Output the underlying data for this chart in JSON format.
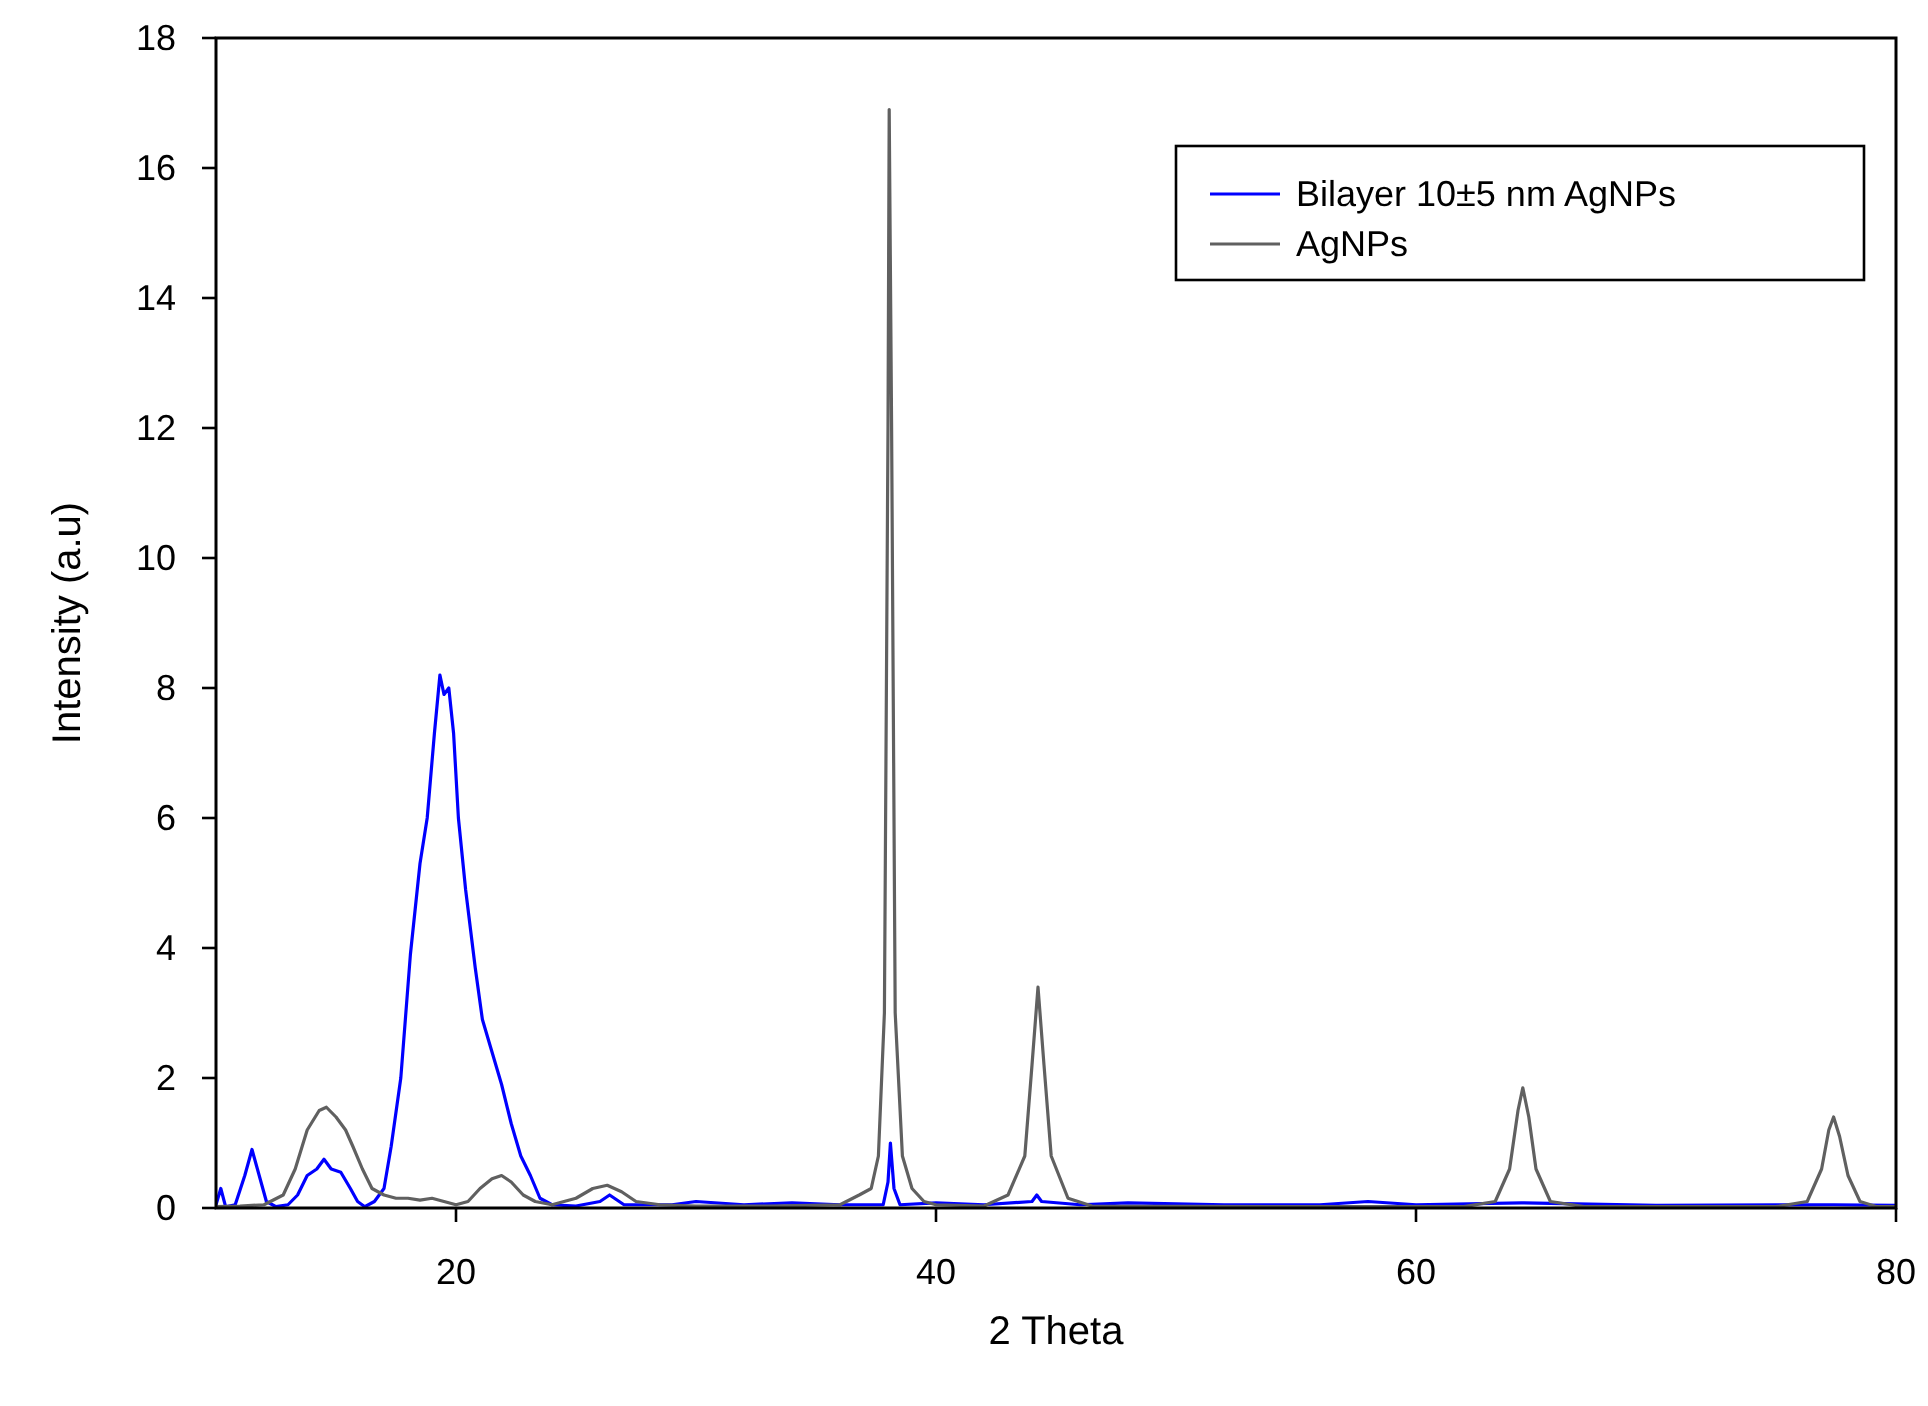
{
  "chart_data": {
    "type": "line",
    "xlabel": "2 Theta",
    "ylabel": "Intensity (a.u)",
    "xlim": [
      10,
      80
    ],
    "xticks": [
      20,
      40,
      60,
      80
    ],
    "ylim": [
      0,
      18
    ],
    "yticks": [
      0,
      2,
      4,
      6,
      8,
      10,
      12,
      14,
      16,
      18
    ],
    "grid": false,
    "legend": "top right",
    "marker": "none",
    "line_style": "solid",
    "series": [
      {
        "name": "Bilayer 10±5 nm AgNPs",
        "color": "#0000ff",
        "x": [
          10,
          10.2,
          10.4,
          10.8,
          11.2,
          11.5,
          11.8,
          12.1,
          12.5,
          13,
          13.4,
          13.8,
          14.2,
          14.5,
          14.8,
          15.2,
          15.6,
          15.9,
          16.2,
          16.6,
          17,
          17.3,
          17.7,
          18.1,
          18.5,
          18.8,
          19.1,
          19.33,
          19.5,
          19.7,
          19.9,
          20.1,
          20.4,
          20.8,
          21.1,
          21.5,
          21.9,
          22.3,
          22.7,
          23.1,
          23.5,
          24,
          25,
          26,
          26.4,
          27,
          29,
          30,
          32,
          34,
          36,
          37.8,
          38,
          38.1,
          38.25,
          38.5,
          40,
          42,
          44,
          44.2,
          44.4,
          46,
          48,
          52,
          56,
          58,
          60,
          64.4,
          70,
          77.4,
          80
        ],
        "values": [
          0.05,
          0.3,
          0.02,
          0.05,
          0.5,
          0.9,
          0.5,
          0.1,
          0.02,
          0.05,
          0.2,
          0.5,
          0.6,
          0.75,
          0.6,
          0.55,
          0.3,
          0.1,
          0.02,
          0.1,
          0.3,
          0.95,
          2,
          3.9,
          5.3,
          6,
          7.3,
          8.2,
          7.9,
          8,
          7.3,
          6,
          4.9,
          3.7,
          2.9,
          2.4,
          1.9,
          1.3,
          0.8,
          0.5,
          0.15,
          0.05,
          0.03,
          0.1,
          0.2,
          0.05,
          0.05,
          0.1,
          0.05,
          0.08,
          0.05,
          0.05,
          0.4,
          1,
          0.3,
          0.05,
          0.08,
          0.05,
          0.1,
          0.2,
          0.1,
          0.05,
          0.08,
          0.05,
          0.05,
          0.1,
          0.05,
          0.08,
          0.04,
          0.05,
          0.04
        ]
      },
      {
        "name": "AgNPs",
        "color": "#606060",
        "x": [
          10,
          11,
          12,
          12.8,
          13.3,
          13.8,
          14.3,
          14.6,
          15,
          15.4,
          15.7,
          16.1,
          16.5,
          17,
          17.5,
          18,
          18.5,
          19,
          19.5,
          20,
          20.5,
          21,
          21.5,
          21.9,
          22.3,
          22.8,
          23.3,
          24,
          25,
          25.7,
          26.3,
          26.9,
          27.5,
          28.5,
          30,
          33,
          36,
          36.8,
          37.3,
          37.6,
          37.85,
          38,
          38.05,
          38.15,
          38.3,
          38.6,
          39,
          39.5,
          40,
          42,
          43,
          43.7,
          44,
          44.25,
          44.5,
          44.8,
          45.5,
          46.5,
          55,
          62,
          63.3,
          63.9,
          64.25,
          64.45,
          64.7,
          65,
          65.6,
          67,
          75,
          76.3,
          76.9,
          77.2,
          77.4,
          77.65,
          78,
          78.5,
          79.2,
          80
        ],
        "values": [
          0.02,
          0.03,
          0.05,
          0.2,
          0.6,
          1.2,
          1.5,
          1.55,
          1.4,
          1.2,
          0.95,
          0.6,
          0.3,
          0.2,
          0.15,
          0.15,
          0.12,
          0.15,
          0.1,
          0.05,
          0.1,
          0.3,
          0.45,
          0.5,
          0.4,
          0.2,
          0.1,
          0.05,
          0.15,
          0.3,
          0.35,
          0.25,
          0.1,
          0.05,
          0.03,
          0.03,
          0.05,
          0.2,
          0.3,
          0.8,
          3,
          12,
          16.9,
          12,
          3,
          0.8,
          0.3,
          0.1,
          0.05,
          0.03,
          0.2,
          0.8,
          2.2,
          3.4,
          2.2,
          0.8,
          0.15,
          0.03,
          0.02,
          0.02,
          0.1,
          0.6,
          1.5,
          1.85,
          1.4,
          0.6,
          0.1,
          0.02,
          0.02,
          0.1,
          0.6,
          1.2,
          1.4,
          1.1,
          0.5,
          0.1,
          0.02,
          0.02
        ]
      }
    ]
  }
}
